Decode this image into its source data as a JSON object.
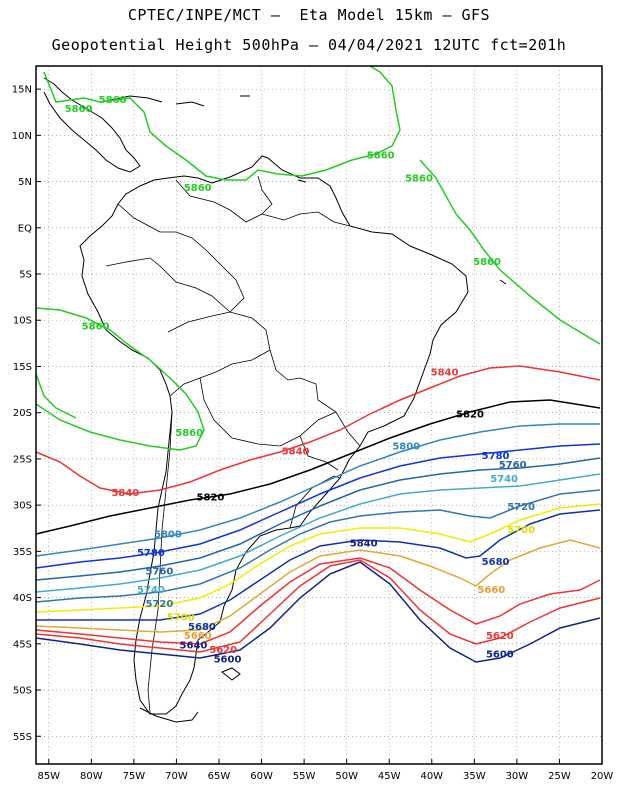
{
  "header": {
    "line1": "CPTEC/INPE/MCT –  Eta Model 15km – GFS",
    "line2": "Geopotential Height 500hPa – 04/04/2021 12UTC fct=201h"
  },
  "axes": {
    "lat_labels": [
      "15N",
      "10N",
      "5N",
      "EQ",
      "5S",
      "10S",
      "15S",
      "20S",
      "25S",
      "30S",
      "35S",
      "40S",
      "45S",
      "50S",
      "55S"
    ],
    "lat_values": [
      15,
      10,
      5,
      0,
      -5,
      -10,
      -15,
      -20,
      -25,
      -30,
      -35,
      -40,
      -45,
      -50,
      -55
    ],
    "lon_labels": [
      "85W",
      "80W",
      "75W",
      "70W",
      "65W",
      "60W",
      "55W",
      "50W",
      "45W",
      "40W",
      "35W",
      "30W",
      "25W",
      "20W"
    ],
    "lon_values": [
      -85,
      -80,
      -75,
      -70,
      -65,
      -60,
      -55,
      -50,
      -45,
      -40,
      -35,
      -30,
      -25,
      -20
    ],
    "lon_range": [
      -86.5,
      -20
    ],
    "lat_range": [
      -58,
      17.5
    ],
    "grid": "dotted"
  },
  "contours": [
    {
      "value": "5860",
      "color": "#22cc22"
    },
    {
      "value": "5840",
      "color": "#ee3333"
    },
    {
      "value": "5820",
      "color": "#000000"
    },
    {
      "value": "5800",
      "color": "#3388bb"
    },
    {
      "value": "5780",
      "color": "#1133dd"
    },
    {
      "value": "5760",
      "color": "#2266aa"
    },
    {
      "value": "5740",
      "color": "#44aacc"
    },
    {
      "value": "5720",
      "color": "#3377aa"
    },
    {
      "value": "5700",
      "color": "#eeee00"
    },
    {
      "value": "5680",
      "color": "#ddaa33"
    },
    {
      "value": "5660",
      "color": "#ee9933"
    },
    {
      "value": "5620",
      "color": "#ee3333"
    },
    {
      "value": "5600",
      "color": "#112288"
    }
  ],
  "labels": [
    {
      "text": "5860",
      "color": "#22cc22",
      "lon": -81.5,
      "lat": 12.5
    },
    {
      "text": "5860",
      "color": "#22cc22",
      "lon": -77.5,
      "lat": 13.5
    },
    {
      "text": "5860",
      "color": "#22cc22",
      "lon": -46,
      "lat": 7.5
    },
    {
      "text": "5860",
      "color": "#22cc22",
      "lon": -67.5,
      "lat": 4
    },
    {
      "text": "5860",
      "color": "#22cc22",
      "lon": -41.5,
      "lat": 5
    },
    {
      "text": "5860",
      "color": "#22cc22",
      "lon": -33.5,
      "lat": -4
    },
    {
      "text": "5860",
      "color": "#22cc22",
      "lon": -79.5,
      "lat": -11
    },
    {
      "text": "5860",
      "color": "#22cc22",
      "lon": -68.5,
      "lat": -22.5
    },
    {
      "text": "5840",
      "color": "#ee3333",
      "lon": -38.5,
      "lat": -16
    },
    {
      "text": "5840",
      "color": "#ee3333",
      "lon": -56,
      "lat": -24.5
    },
    {
      "text": "5840",
      "color": "#ee3333",
      "lon": -76,
      "lat": -29
    },
    {
      "text": "5840",
      "color": "#112288",
      "lon": -48,
      "lat": -34.5
    },
    {
      "text": "5820",
      "color": "#000000",
      "lon": -35.5,
      "lat": -20.5
    },
    {
      "text": "5820",
      "color": "#000000",
      "lon": -66,
      "lat": -29.5
    },
    {
      "text": "5800",
      "color": "#3388bb",
      "lon": -43,
      "lat": -24
    },
    {
      "text": "5800",
      "color": "#3388bb",
      "lon": -71,
      "lat": -33.5
    },
    {
      "text": "5780",
      "color": "#1133dd",
      "lon": -32.5,
      "lat": -25
    },
    {
      "text": "5780",
      "color": "#1133dd",
      "lon": -73,
      "lat": -35.5
    },
    {
      "text": "5760",
      "color": "#2266aa",
      "lon": -30.5,
      "lat": -26
    },
    {
      "text": "5760",
      "color": "#2266aa",
      "lon": -72,
      "lat": -37.5
    },
    {
      "text": "5740",
      "color": "#44aacc",
      "lon": -31.5,
      "lat": -27.5
    },
    {
      "text": "5740",
      "color": "#44aacc",
      "lon": -73,
      "lat": -39.5
    },
    {
      "text": "5720",
      "color": "#3377aa",
      "lon": -29.5,
      "lat": -30.5
    },
    {
      "text": "5720",
      "color": "#3377aa",
      "lon": -72,
      "lat": -41
    },
    {
      "text": "5700",
      "color": "#dddd00",
      "lon": -29.5,
      "lat": -33
    },
    {
      "text": "5700",
      "color": "#dddd00",
      "lon": -69.5,
      "lat": -42.5
    },
    {
      "text": "5680",
      "color": "#1133aa",
      "lon": -32.5,
      "lat": -36.5
    },
    {
      "text": "5680",
      "color": "#1133aa",
      "lon": -67,
      "lat": -43.5
    },
    {
      "text": "5660",
      "color": "#ee9933",
      "lon": -33,
      "lat": -39.5
    },
    {
      "text": "5660",
      "color": "#ee9933",
      "lon": -67.5,
      "lat": -44.5
    },
    {
      "text": "5640",
      "color": "#112288",
      "lon": -68,
      "lat": -45.5
    },
    {
      "text": "5620",
      "color": "#ee3333",
      "lon": -32,
      "lat": -44.5
    },
    {
      "text": "5620",
      "color": "#ee3333",
      "lon": -64.5,
      "lat": -46
    },
    {
      "text": "5600",
      "color": "#112288",
      "lon": -32,
      "lat": -46.5
    },
    {
      "text": "5600",
      "color": "#112288",
      "lon": -64,
      "lat": -47
    }
  ]
}
